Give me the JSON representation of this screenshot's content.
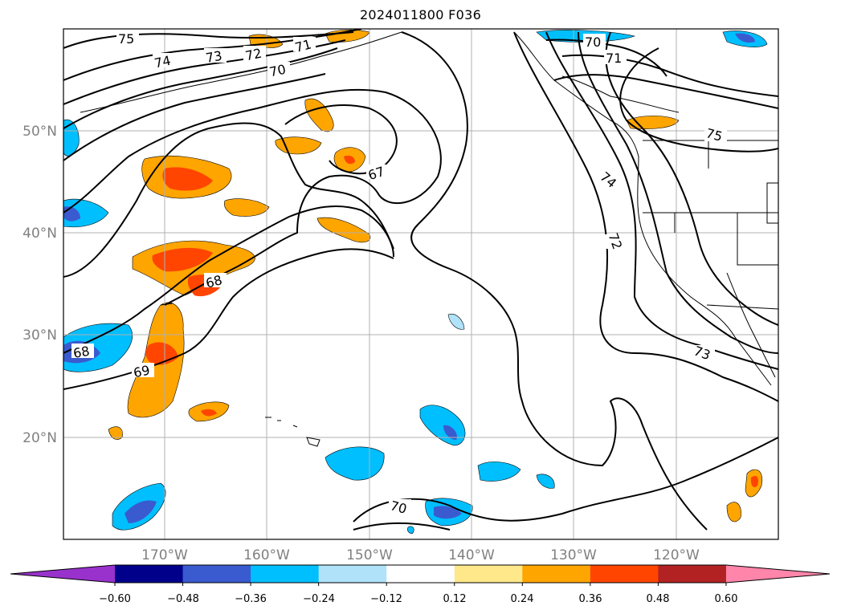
{
  "title": "2024011800 F036",
  "map": {
    "lat_labels": [
      "50°N",
      "40°N",
      "30°N",
      "20°N"
    ],
    "lon_labels": [
      "170°W",
      "160°W",
      "150°W",
      "140°W",
      "130°W",
      "120°W"
    ],
    "contour_labels": [
      "75",
      "74",
      "73",
      "72",
      "71",
      "70",
      "67",
      "68",
      "68",
      "69",
      "70",
      "70",
      "71",
      "74",
      "72",
      "73",
      "75"
    ]
  },
  "colorbar": {
    "ticks": [
      "−0.60",
      "−0.48",
      "−0.36",
      "−0.24",
      "−0.12",
      "0.12",
      "0.24",
      "0.36",
      "0.48",
      "0.60"
    ],
    "colors": [
      "#9932cc",
      "#00008b",
      "#3a5bcf",
      "#00bfff",
      "#b0e2fa",
      "#ffffff",
      "#ffe88a",
      "#ffa500",
      "#ff4500",
      "#b22222",
      "#ff85aa"
    ]
  }
}
